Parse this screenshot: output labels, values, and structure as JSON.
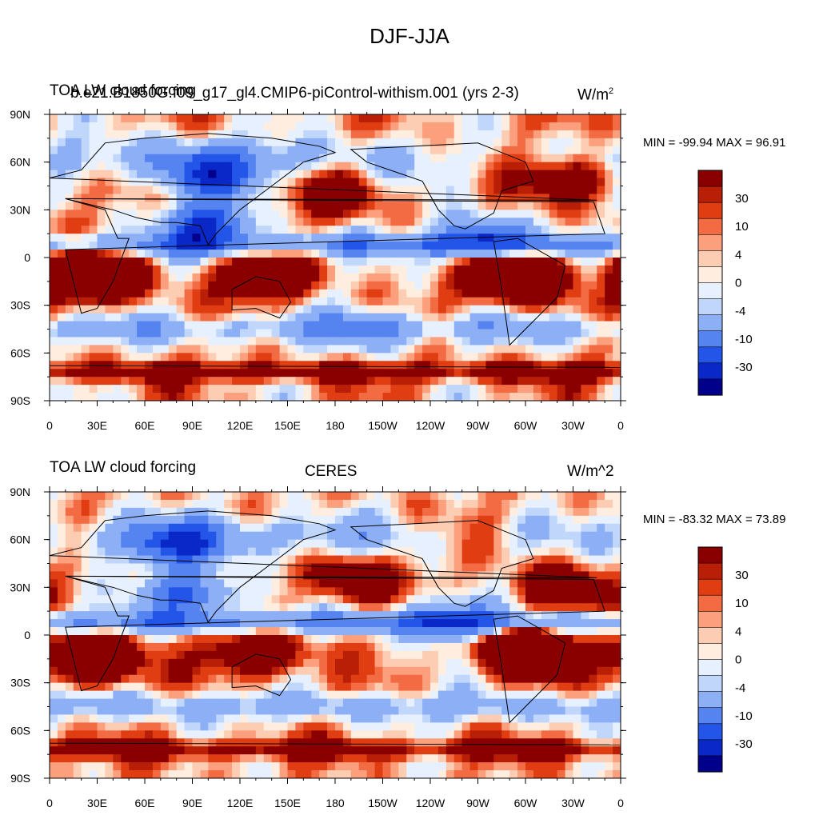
{
  "figure_title": "DJF-JJA",
  "colorbar_levels": [
    "-30",
    "-10",
    "-4",
    "0",
    "4",
    "10",
    "30"
  ],
  "colorbar_colors": [
    "#00008b",
    "#0a28c8",
    "#2355e8",
    "#5584f0",
    "#8caff6",
    "#c0d6fb",
    "#e6f0fe",
    "#ffeee0",
    "#fdcdb3",
    "#fb9f7c",
    "#f36b42",
    "#e03d12",
    "#b81f06",
    "#8a0000"
  ],
  "x_ticks": [
    "0",
    "30E",
    "60E",
    "90E",
    "120E",
    "150E",
    "180",
    "150W",
    "120W",
    "90W",
    "60W",
    "30W",
    "0"
  ],
  "y_ticks": [
    "90N",
    "60N",
    "30N",
    "0",
    "30S",
    "60S",
    "90S"
  ],
  "panels": [
    {
      "left_label": "TOA LW cloud forcing",
      "center_label": "b.e21.B1850G.f09_g17_gl4.CMIP6-piControl-withism.001 (yrs 2-3)",
      "units_base": "W/m",
      "units_sup": "2",
      "units_text": "",
      "min_max": "MIN = -99.94 MAX =  96.91"
    },
    {
      "left_label": "TOA LW cloud forcing",
      "center_label": "CERES",
      "units_base": "",
      "units_sup": "",
      "units_text": "W/m^2",
      "min_max": "MIN = -83.32 MAX =  73.89"
    }
  ],
  "chart_data": [
    {
      "type": "heatmap",
      "title": "TOA LW cloud forcing",
      "subtitle": "b.e21.B1850G.f09_g17_gl4.CMIP6-piControl-withism.001 (yrs 2-3)",
      "units": "W/m^2",
      "x_ticks": [
        "0",
        "30E",
        "60E",
        "90E",
        "120E",
        "150E",
        "180",
        "150W",
        "120W",
        "90W",
        "60W",
        "30W",
        "0"
      ],
      "y_ticks": [
        "90N",
        "60N",
        "30N",
        "0",
        "30S",
        "60S",
        "90S"
      ],
      "xlim": [
        0,
        360
      ],
      "ylim": [
        -90,
        90
      ],
      "contour_levels": [
        -50,
        -40,
        -30,
        -20,
        -10,
        -8,
        -4,
        -2,
        0,
        2,
        4,
        8,
        10,
        20,
        30,
        40
      ],
      "min": -99.94,
      "max": 96.91,
      "features": [
        {
          "lon": 28,
          "lat": -12,
          "value": 55
        },
        {
          "lon": 295,
          "lat": -12,
          "value": 60
        },
        {
          "lon": 135,
          "lat": -12,
          "value": 30
        },
        {
          "lon": 180,
          "lat": 40,
          "value": 20
        },
        {
          "lon": 330,
          "lat": 50,
          "value": 25
        },
        {
          "lon": 100,
          "lat": 20,
          "value": -40
        },
        {
          "lon": 100,
          "lat": 50,
          "value": -30
        },
        {
          "lon": 270,
          "lat": 12,
          "value": -35
        },
        {
          "lon": 200,
          "lat": -45,
          "value": -15
        }
      ]
    },
    {
      "type": "heatmap",
      "title": "TOA LW cloud forcing",
      "subtitle": "CERES",
      "units": "W/m^2",
      "x_ticks": [
        "0",
        "30E",
        "60E",
        "90E",
        "120E",
        "150E",
        "180",
        "150W",
        "120W",
        "90W",
        "60W",
        "30W",
        "0"
      ],
      "y_ticks": [
        "90N",
        "60N",
        "30N",
        "0",
        "30S",
        "60S",
        "90S"
      ],
      "xlim": [
        0,
        360
      ],
      "ylim": [
        -90,
        90
      ],
      "contour_levels": [
        -50,
        -40,
        -30,
        -20,
        -10,
        -8,
        -4,
        -2,
        0,
        2,
        4,
        8,
        10,
        20,
        30,
        40
      ],
      "min": -83.32,
      "max": 73.89,
      "features": [
        {
          "lon": 25,
          "lat": -15,
          "value": 45
        },
        {
          "lon": 300,
          "lat": -10,
          "value": 55
        },
        {
          "lon": 130,
          "lat": -12,
          "value": 30
        },
        {
          "lon": 190,
          "lat": 35,
          "value": 25
        },
        {
          "lon": 320,
          "lat": 30,
          "value": 25
        },
        {
          "lon": 90,
          "lat": 25,
          "value": -35
        },
        {
          "lon": 250,
          "lat": 10,
          "value": -30
        },
        {
          "lon": 80,
          "lat": 55,
          "value": -25
        }
      ]
    }
  ]
}
